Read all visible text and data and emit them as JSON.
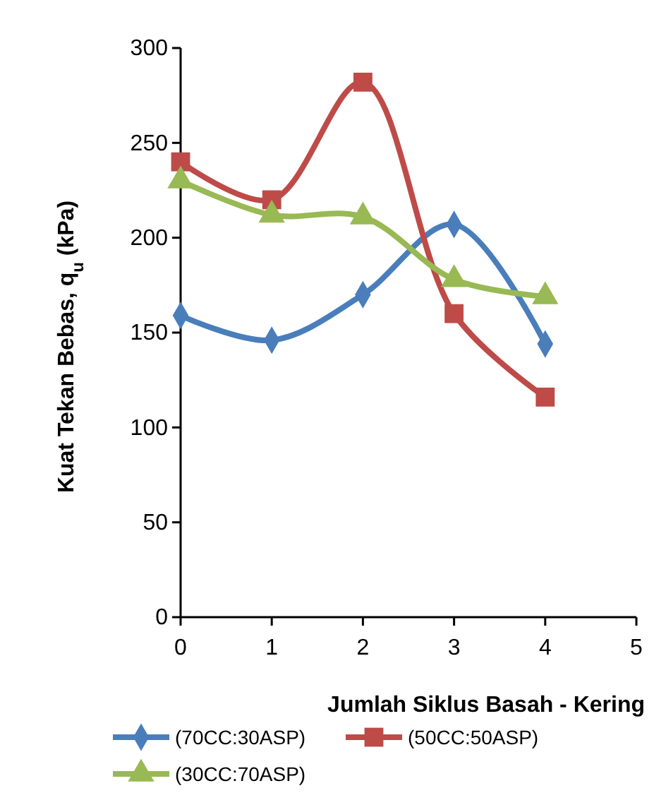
{
  "chart_data": {
    "type": "line",
    "xlabel": "Jumlah Siklus Basah - Kering",
    "ylabel": "Kuat Tekan Bebas, q$_{u}$ (kPa)",
    "x": [
      0,
      1,
      2,
      3,
      4
    ],
    "series": [
      {
        "name": "(70CC:30ASP)",
        "color": "#4a7ebb",
        "marker": "diamond",
        "values": [
          159,
          146,
          170,
          207,
          144
        ]
      },
      {
        "name": "(50CC:50ASP)",
        "color": "#be4b48",
        "marker": "square",
        "values": [
          240,
          220,
          282,
          160,
          116
        ]
      },
      {
        "name": "(30CC:70ASP)",
        "color": "#98b954",
        "marker": "triangle",
        "values": [
          230,
          212,
          211,
          178,
          169
        ]
      }
    ],
    "xlim": [
      0,
      5
    ],
    "xticks": [
      0,
      1,
      2,
      3,
      4,
      5
    ],
    "ylim": [
      0,
      300
    ],
    "yticks": [
      0,
      50,
      100,
      150,
      200,
      250,
      300
    ],
    "grid": false,
    "legend": "bottom",
    "line_style": "solid"
  }
}
